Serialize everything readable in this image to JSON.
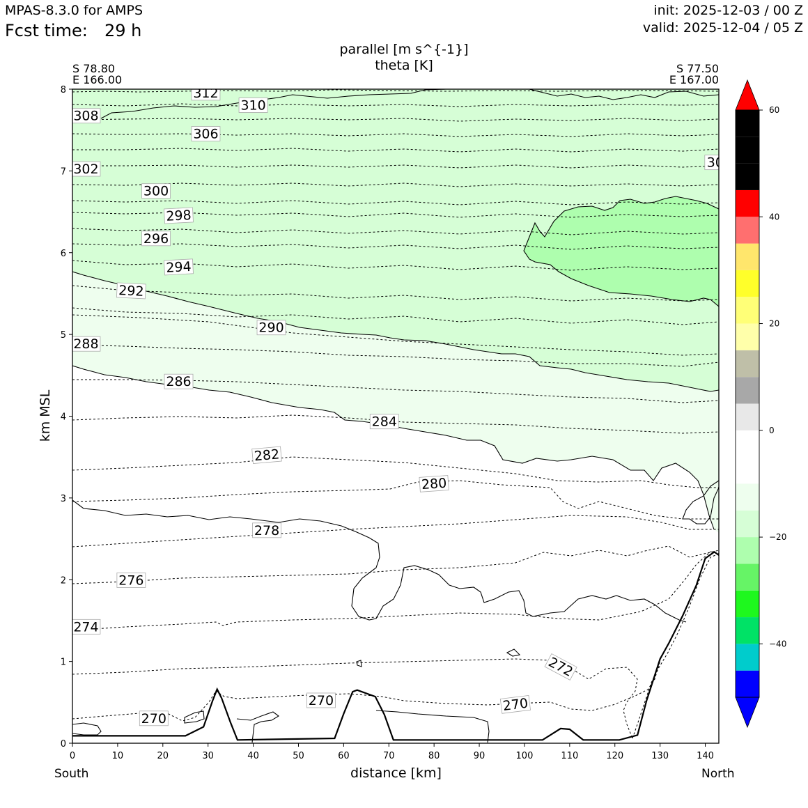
{
  "header": {
    "model": "MPAS-8.3.0 for AMPS",
    "fcst_label": "Fcst time:",
    "fcst_value": "29 h",
    "init": "init: 2025-12-03 / 00 Z",
    "valid": "valid: 2025-12-04 / 05 Z"
  },
  "titles": {
    "line1": "parallel [m s^{-1}]",
    "line2": "theta [K]"
  },
  "endpoints": {
    "left_lat": "S 78.80",
    "left_lon": "E 166.00",
    "right_lat": "S 77.50",
    "right_lon": "E 167.00",
    "left_dir": "South",
    "right_dir": "North"
  },
  "chart_data": {
    "type": "cross-section",
    "xlabel": "distance [km]",
    "ylabel": "km MSL",
    "xlim": [
      0,
      143
    ],
    "ylim": [
      0,
      8
    ],
    "x_ticks": [
      0,
      10,
      20,
      30,
      40,
      50,
      60,
      70,
      80,
      90,
      100,
      110,
      120,
      130,
      140
    ],
    "y_ticks": [
      0,
      1,
      2,
      3,
      4,
      5,
      6,
      7,
      8
    ],
    "colorbar": {
      "levels": [
        -50,
        -45,
        -40,
        -35,
        -30,
        -25,
        -20,
        -15,
        -10,
        -5,
        0,
        5,
        10,
        15,
        20,
        25,
        30,
        35,
        40,
        45,
        50,
        55,
        60
      ],
      "colors": [
        "#0000ff",
        "#00cccc",
        "#00e266",
        "#1ef81e",
        "#66f466",
        "#aefeae",
        "#d6fed6",
        "#eefeee",
        "#ffffff",
        "#ffffff",
        "#e8e8e8",
        "#a8a8a8",
        "#bfbfa8",
        "#ffffaa",
        "#ffff77",
        "#ffff2a",
        "#ffe66c",
        "#ff6f6f",
        "#ff0000"
      ],
      "tick_labels": [
        "60",
        "40",
        "20",
        "0",
        "−20",
        "−40"
      ],
      "tick_values": [
        60,
        40,
        20,
        0,
        -20,
        -40
      ],
      "extend": "both"
    },
    "theta_labels": [
      {
        "text": "312",
        "x": 29.5,
        "y": 7.95,
        "rot": 0
      },
      {
        "text": "310",
        "x": 40,
        "y": 7.8,
        "rot": 0
      },
      {
        "text": "308",
        "x": 3,
        "y": 7.67,
        "rot": 0
      },
      {
        "text": "306",
        "x": 29.5,
        "y": 7.45,
        "rot": 0
      },
      {
        "text": "302",
        "x": 3,
        "y": 7.02,
        "rot": 0
      },
      {
        "text": "30",
        "x": 142.2,
        "y": 7.1,
        "rot": 0
      },
      {
        "text": "300",
        "x": 18.5,
        "y": 6.75,
        "rot": 0
      },
      {
        "text": "298",
        "x": 23.5,
        "y": 6.45,
        "rot": -3
      },
      {
        "text": "296",
        "x": 18.5,
        "y": 6.17,
        "rot": 0
      },
      {
        "text": "294",
        "x": 23.5,
        "y": 5.82,
        "rot": -3
      },
      {
        "text": "292",
        "x": 13,
        "y": 5.53,
        "rot": 3
      },
      {
        "text": "290",
        "x": 44,
        "y": 5.08,
        "rot": 0
      },
      {
        "text": "288",
        "x": 3,
        "y": 4.88,
        "rot": 0
      },
      {
        "text": "286",
        "x": 23.5,
        "y": 4.42,
        "rot": 0
      },
      {
        "text": "284",
        "x": 69,
        "y": 3.93,
        "rot": 0
      },
      {
        "text": "282",
        "x": 43,
        "y": 3.52,
        "rot": -5
      },
      {
        "text": "280",
        "x": 80,
        "y": 3.17,
        "rot": -4
      },
      {
        "text": "278",
        "x": 43,
        "y": 2.6,
        "rot": 0
      },
      {
        "text": "276",
        "x": 13,
        "y": 1.99,
        "rot": 0
      },
      {
        "text": "274",
        "x": 3,
        "y": 1.42,
        "rot": 0
      },
      {
        "text": "272",
        "x": 108,
        "y": 0.93,
        "rot": 28
      },
      {
        "text": "270",
        "x": 18,
        "y": 0.3,
        "rot": 0
      },
      {
        "text": "270",
        "x": 55,
        "y": 0.52,
        "rot": 0
      },
      {
        "text": "270",
        "x": 98,
        "y": 0.47,
        "rot": -7
      }
    ],
    "terrain": [
      [
        0,
        0.09
      ],
      [
        25,
        0.09
      ],
      [
        29,
        0.2
      ],
      [
        31,
        0.52
      ],
      [
        32,
        0.66
      ],
      [
        33,
        0.55
      ],
      [
        35,
        0.25
      ],
      [
        36.5,
        0.04
      ],
      [
        58,
        0.06
      ],
      [
        60,
        0.36
      ],
      [
        62,
        0.63
      ],
      [
        63,
        0.65
      ],
      [
        67,
        0.57
      ],
      [
        69,
        0.35
      ],
      [
        71,
        0.04
      ],
      [
        104,
        0.04
      ],
      [
        108,
        0.18
      ],
      [
        110,
        0.17
      ],
      [
        113,
        0.04
      ],
      [
        121,
        0.04
      ],
      [
        125,
        0.1
      ],
      [
        127,
        0.52
      ],
      [
        130,
        1.03
      ],
      [
        132,
        1.23
      ],
      [
        135,
        1.56
      ],
      [
        138,
        1.93
      ],
      [
        140,
        2.26
      ],
      [
        142,
        2.34
      ],
      [
        143,
        2.3
      ]
    ]
  }
}
